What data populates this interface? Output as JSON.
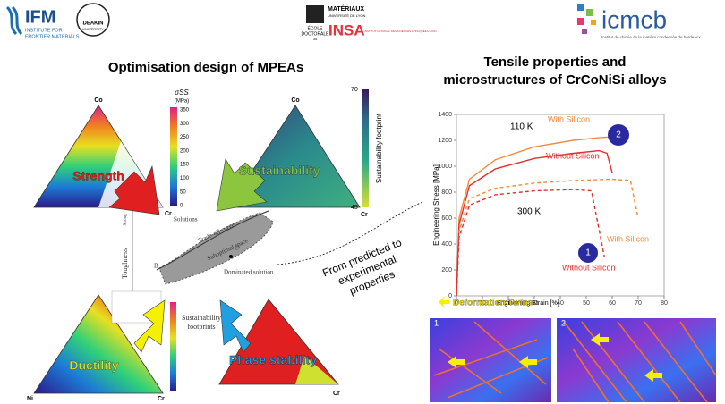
{
  "header": {
    "ifm": "IFM",
    "ifm_sub1": "INSTITUTE FOR",
    "ifm_sub2": "FRONTIER MATERIALS",
    "deakin": "DEAKIN",
    "deakin_sub": "UNIVERSITY",
    "materiaux": "MATÉRIAUX",
    "lyon": "UNIVERSITÉ DE LYON",
    "ecole": "ÉCOLE",
    "doctorale": "DOCTORALE",
    "ed": "34",
    "insa": "INSA",
    "insa_sub": "INSTITUT NATIONAL DES SCIENCES APPLIQUÉES LYON",
    "icmcb": "icmcb",
    "icmcb_sub": "Institut de chimie de la matière condensée de bordeaux"
  },
  "left": {
    "title": "Optimisation design of MPEAs",
    "co1": "Co",
    "co2": "Co",
    "cr1": "Cr",
    "cr2": "Cr",
    "cr3": "Cr",
    "cr4": "Cr",
    "ni1": "Ni",
    "ni2": "Ni",
    "sigma": "σSS",
    "mpa": "(MPa)",
    "strength_ticks": [
      350,
      300,
      250,
      200,
      150,
      100,
      50,
      0
    ],
    "strength_lim": [
      0,
      360
    ],
    "footprint_label": "Sustainability footprint",
    "footprint_ticks": [
      70,
      45
    ],
    "footprint_lim": [
      45,
      70
    ],
    "strength": "Strength",
    "sustainability": "Sustainability",
    "ductility": "Ductility",
    "phase": "Phase stability",
    "toughness": "Toughness",
    "strong": "Strong",
    "solutions": "Solutions",
    "tradeoff": "Trade-off curve",
    "suboptimal": "Suboptimal space",
    "dominated": "Dominated solution",
    "b": "B",
    "c": "C",
    "footprints1": "Sustainability",
    "footprints2": "footprints"
  },
  "middle": {
    "line1": "From predicted to",
    "line2": "experimental",
    "line3": "properties"
  },
  "right": {
    "title1": "Tensile properties and",
    "title2": "microstructures of CrCoNiSi alloys",
    "t110": "110 K",
    "t300": "300 K",
    "twins": "Deformation Twins",
    "m1": "1",
    "m2": "2",
    "p1": "1",
    "p2": "2"
  },
  "chart_data": {
    "type": "line",
    "xlabel": "Engineering Strain [%]",
    "ylabel": "Engineering Stress [MPa]",
    "xlim": [
      0,
      80
    ],
    "ylim": [
      0,
      1400
    ],
    "xticks": [
      0,
      10,
      20,
      30,
      40,
      50,
      60,
      70,
      80
    ],
    "yticks": [
      0,
      200,
      400,
      600,
      800,
      1000,
      1200,
      1400
    ],
    "series": [
      {
        "name": "With Silicon",
        "color": "#f08a3c",
        "dash": false,
        "x": [
          0,
          1,
          5,
          15,
          30,
          45,
          55,
          62
        ],
        "values": [
          0,
          600,
          900,
          1050,
          1150,
          1200,
          1220,
          1230
        ]
      },
      {
        "name": "Without Silicon",
        "color": "#e0302c",
        "dash": false,
        "x": [
          0,
          1,
          5,
          15,
          30,
          45,
          55,
          58,
          60
        ],
        "values": [
          0,
          550,
          850,
          980,
          1060,
          1100,
          1120,
          1100,
          950
        ]
      },
      {
        "name": "With Silicon",
        "color": "#f08a3c",
        "dash": true,
        "x": [
          0,
          1,
          5,
          15,
          30,
          45,
          60,
          67,
          70
        ],
        "values": [
          0,
          500,
          750,
          830,
          870,
          890,
          900,
          890,
          600
        ]
      },
      {
        "name": "Without Silicon",
        "color": "#e0302c",
        "dash": true,
        "x": [
          0,
          1,
          5,
          15,
          30,
          45,
          52,
          57
        ],
        "values": [
          0,
          450,
          700,
          780,
          810,
          820,
          810,
          300
        ]
      }
    ]
  }
}
